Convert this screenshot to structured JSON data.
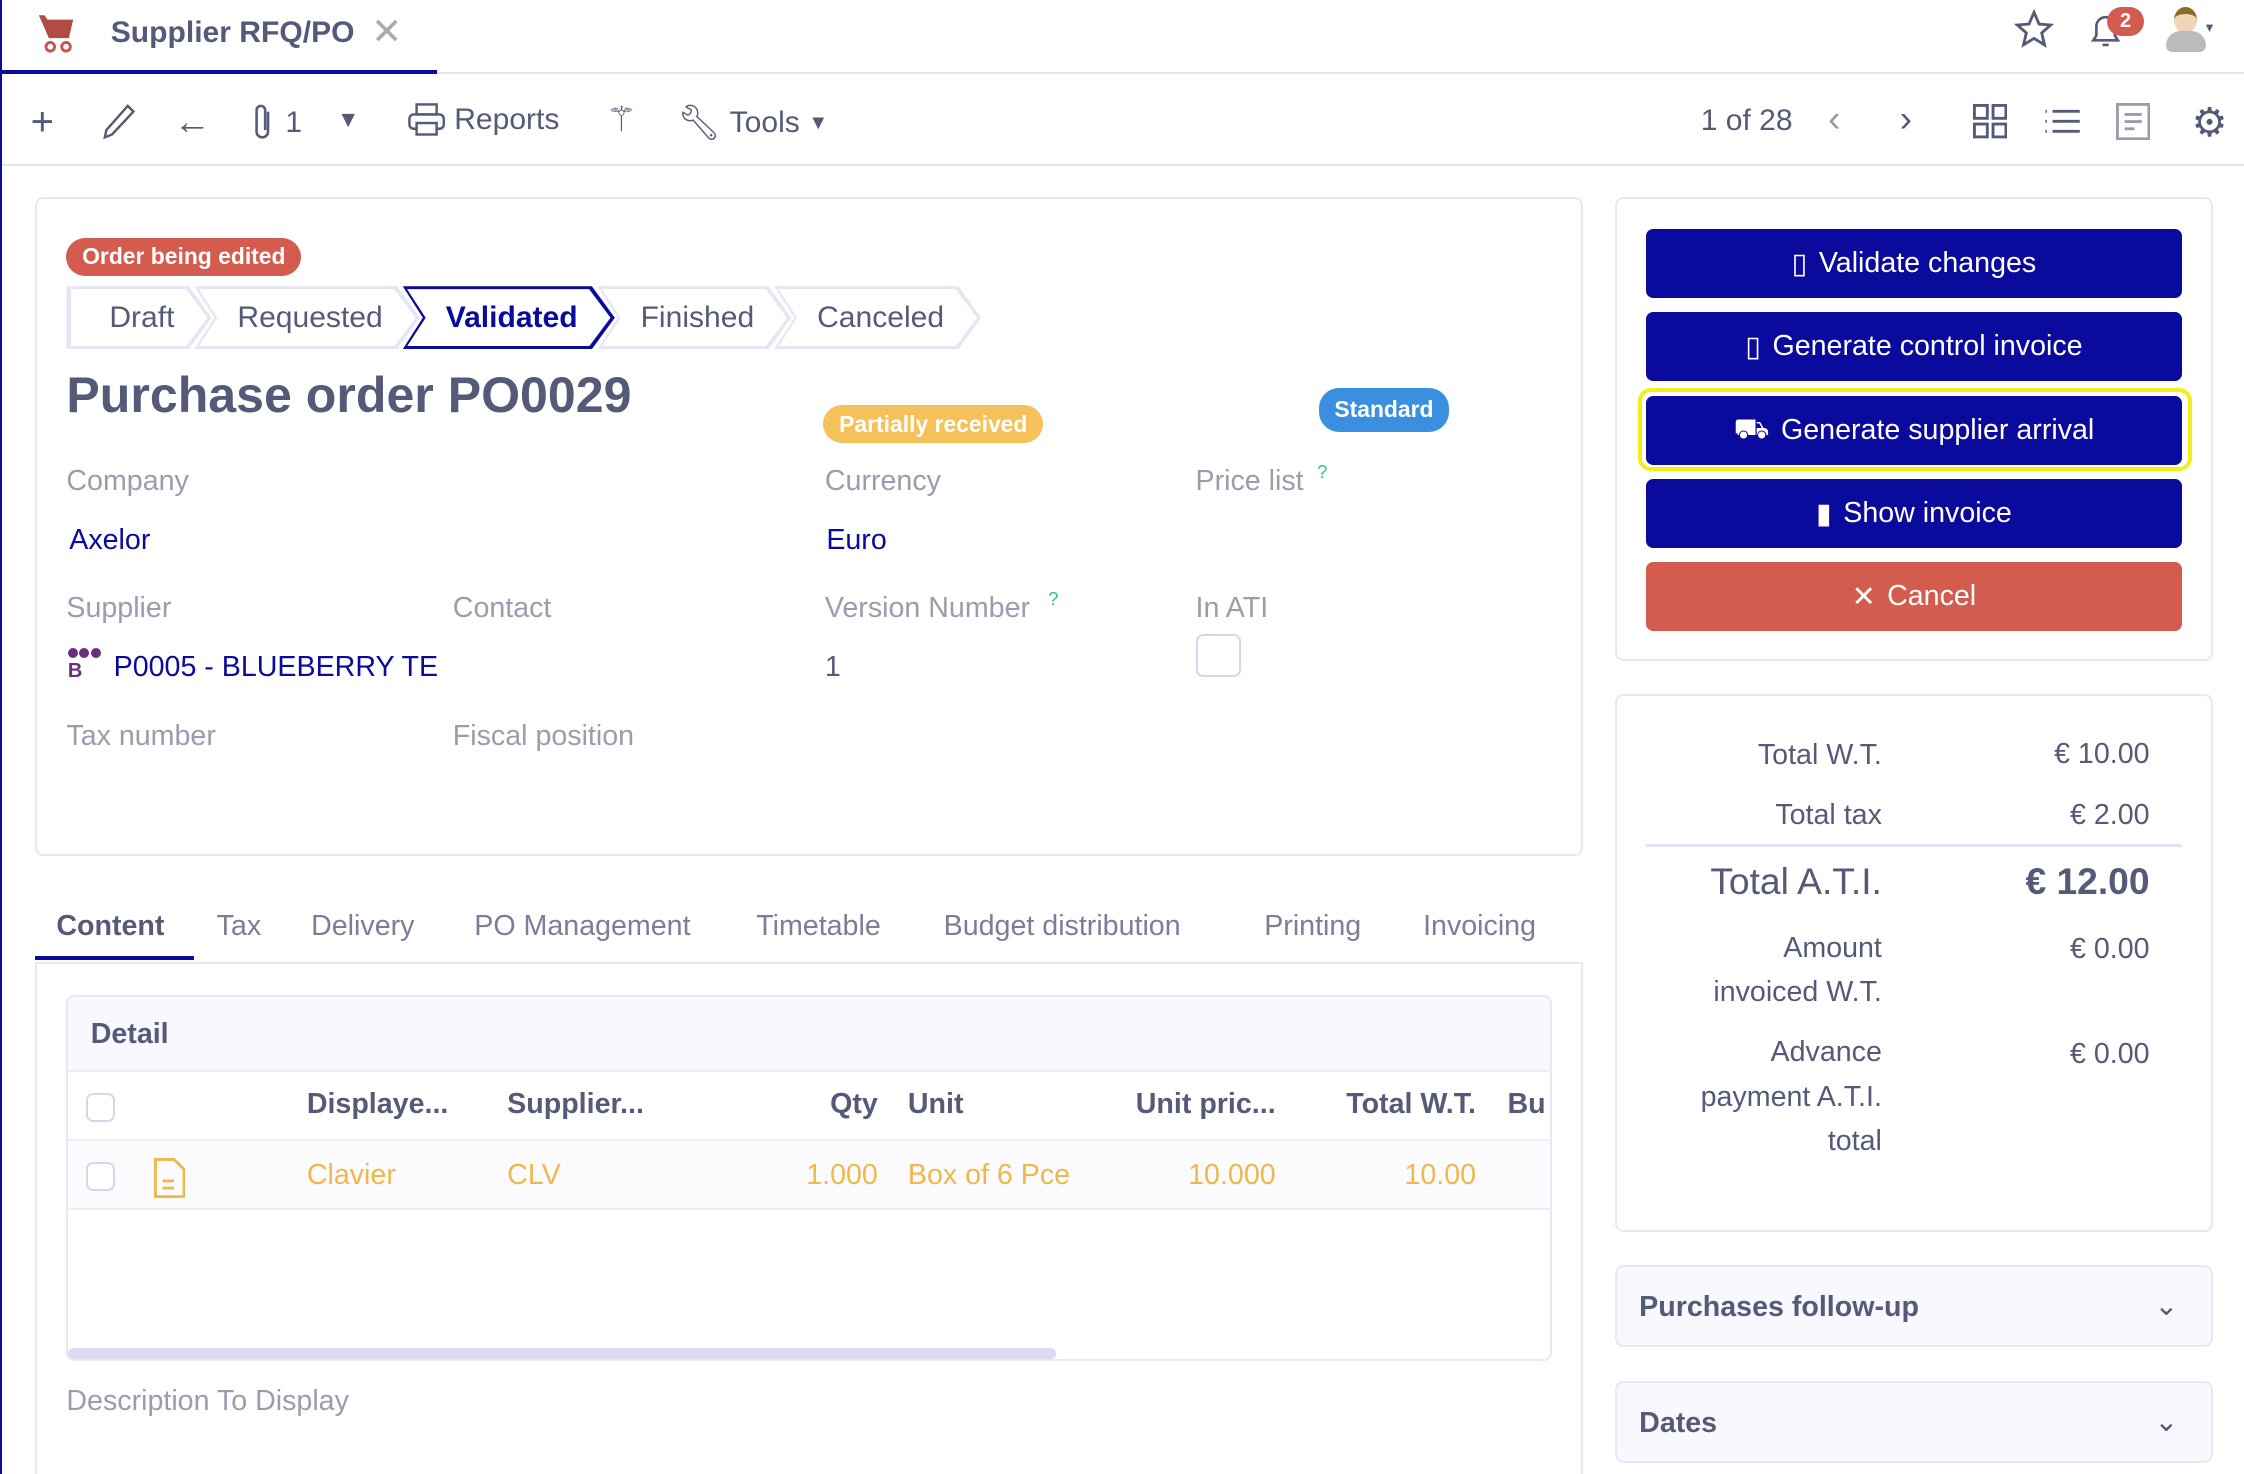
{
  "tab": {
    "title": "Supplier RFQ/PO",
    "icon": "cart-icon"
  },
  "header": {
    "notifications": "2"
  },
  "toolbar": {
    "attachments": "1",
    "reports": "Reports",
    "tools": "Tools",
    "pager": "1 of 28"
  },
  "form": {
    "status_badge": "Order being edited",
    "steps": [
      "Draft",
      "Requested",
      "Validated",
      "Finished",
      "Canceled"
    ],
    "active_step": "Validated",
    "title": "Purchase order PO0029",
    "receipt_badge": "Partially received",
    "type_badge": "Standard",
    "company_label": "Company",
    "company": "Axelor",
    "currency_label": "Currency",
    "currency": "Euro",
    "price_list_label": "Price list",
    "supplier_label": "Supplier",
    "supplier": "P0005 - BLUEBERRY TE",
    "contact_label": "Contact",
    "version_label": "Version Number",
    "version": "1",
    "in_ati_label": "In ATI",
    "in_ati": false,
    "tax_number_label": "Tax number",
    "fiscal_label": "Fiscal position",
    "help": "?"
  },
  "actions": {
    "validate": "Validate changes",
    "control_invoice": "Generate control invoice",
    "supplier_arrival": "Generate supplier arrival",
    "show_invoice": "Show invoice",
    "cancel": "Cancel"
  },
  "totals": {
    "wt_label": "Total W.T.",
    "wt": "€ 10.00",
    "tax_label": "Total tax",
    "tax": "€ 2.00",
    "ati_label": "Total A.T.I.",
    "ati": "€ 12.00",
    "invoiced_label_1": "Amount",
    "invoiced_label_2": "invoiced W.T.",
    "invoiced": "€ 0.00",
    "advance_label_1": "Advance",
    "advance_label_2": "payment A.T.I.",
    "advance_label_3": "total",
    "advance": "€ 0.00"
  },
  "form_tabs": [
    "Content",
    "Tax",
    "Delivery",
    "PO Management",
    "Timetable",
    "Budget distribution",
    "Printing",
    "Invoicing"
  ],
  "detail": {
    "title": "Detail",
    "columns": [
      "Displaye...",
      "Supplier...",
      "Qty",
      "Unit",
      "Unit pric...",
      "Total W.T.",
      "Bu"
    ],
    "rows": [
      {
        "name": "Clavier",
        "code": "CLV",
        "qty": "1.000",
        "unit": "Box of 6 Pce",
        "price": "10.000",
        "total": "10.00"
      }
    ],
    "description_label": "Description To Display"
  },
  "panels": [
    "Purchases follow-up",
    "Dates"
  ],
  "colors": {
    "primary": "#0a0a9c",
    "danger": "#d35c4f",
    "warning": "#f5c15a",
    "info": "#3b8fe0",
    "highlight": "#f2ee1c"
  }
}
